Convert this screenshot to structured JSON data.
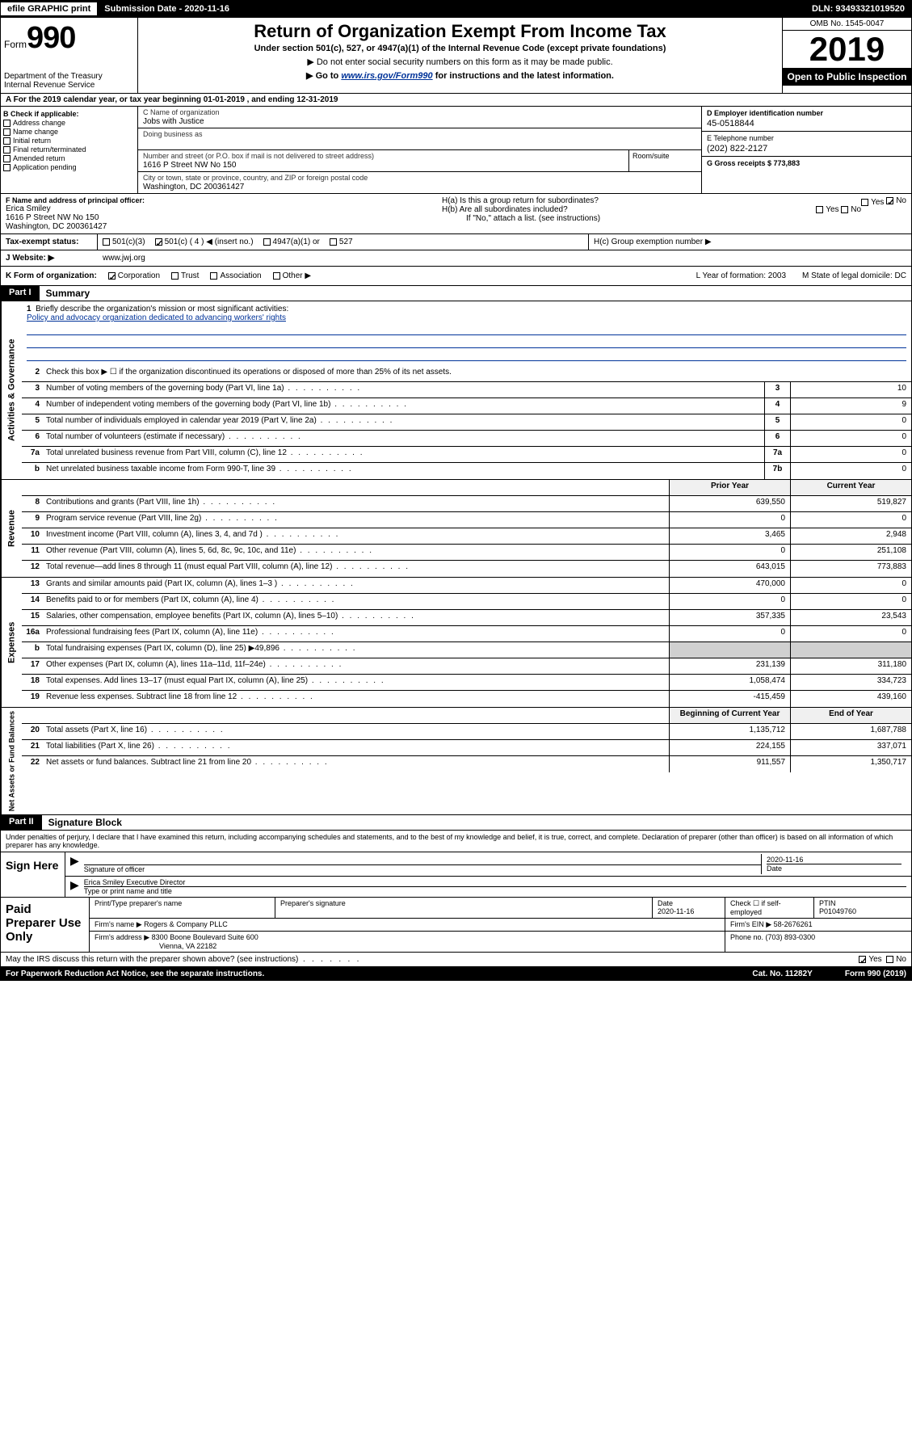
{
  "topbar": {
    "efile": "efile GRAPHIC print",
    "subdate_label": "Submission Date - 2020-11-16",
    "dln": "DLN: 93493321019520"
  },
  "header": {
    "form_label": "Form",
    "form_number": "990",
    "dept": "Department of the Treasury\nInternal Revenue Service",
    "title": "Return of Organization Exempt From Income Tax",
    "sub": "Under section 501(c), 527, or 4947(a)(1) of the Internal Revenue Code (except private foundations)",
    "note1": "▶ Do not enter social security numbers on this form as it may be made public.",
    "note2_pre": "▶ Go to ",
    "note2_link": "www.irs.gov/Form990",
    "note2_post": " for instructions and the latest information.",
    "omb": "OMB No. 1545-0047",
    "year": "2019",
    "open": "Open to Public Inspection"
  },
  "lineA": "A   For the 2019 calendar year, or tax year beginning 01-01-2019    , and ending 12-31-2019",
  "checkboxes": {
    "heading": "B Check if applicable:",
    "items": [
      "Address change",
      "Name change",
      "Initial return",
      "Final return/terminated",
      "Amended return",
      "Application pending"
    ]
  },
  "entity": {
    "name_label": "C Name of organization",
    "name": "Jobs with Justice",
    "dba_label": "Doing business as",
    "addr_label": "Number and street (or P.O. box if mail is not delivered to street address)",
    "room_label": "Room/suite",
    "addr": "1616 P Street NW No 150",
    "city_label": "City or town, state or province, country, and ZIP or foreign postal code",
    "city": "Washington, DC  200361427",
    "ein_label": "D Employer identification number",
    "ein": "45-0518844",
    "tel_label": "E Telephone number",
    "tel": "(202) 822-2127",
    "gross_label": "G Gross receipts $ 773,883"
  },
  "officer": {
    "label": "F  Name and address of principal officer:",
    "name": "Erica Smiley",
    "addr1": "1616 P Street NW No 150",
    "addr2": "Washington, DC  200361427",
    "ha": "H(a)  Is this a group return for subordinates?",
    "hb": "H(b)  Are all subordinates included?",
    "hb_note": "If \"No,\" attach a list. (see instructions)",
    "hc": "H(c)  Group exemption number ▶"
  },
  "tax": {
    "label": "Tax-exempt status:",
    "c3": "501(c)(3)",
    "c4": "501(c) ( 4 ) ◀ (insert no.)",
    "a1": "4947(a)(1) or",
    "s527": "527"
  },
  "website": {
    "label": "J    Website: ▶",
    "val": "www.jwj.org"
  },
  "kform": {
    "label": "K Form of organization:",
    "corp": "Corporation",
    "trust": "Trust",
    "assoc": "Association",
    "other": "Other ▶",
    "year_label": "L Year of formation: 2003",
    "state_label": "M State of legal domicile: DC"
  },
  "part1": {
    "tag": "Part I",
    "title": "Summary"
  },
  "summary": {
    "l1": "Briefly describe the organization's mission or most significant activities:",
    "mission": "Policy and advocacy organization dedicated to advancing workers' rights",
    "l2": "Check this box ▶ ☐  if the organization discontinued its operations or disposed of more than 25% of its net assets.",
    "rows_ag": [
      {
        "n": "3",
        "d": "Number of voting members of the governing body (Part VI, line 1a)",
        "box": "3",
        "v": "10"
      },
      {
        "n": "4",
        "d": "Number of independent voting members of the governing body (Part VI, line 1b)",
        "box": "4",
        "v": "9"
      },
      {
        "n": "5",
        "d": "Total number of individuals employed in calendar year 2019 (Part V, line 2a)",
        "box": "5",
        "v": "0"
      },
      {
        "n": "6",
        "d": "Total number of volunteers (estimate if necessary)",
        "box": "6",
        "v": "0"
      },
      {
        "n": "7a",
        "d": "Total unrelated business revenue from Part VIII, column (C), line 12",
        "box": "7a",
        "v": "0"
      },
      {
        "n": "b",
        "d": "Net unrelated business taxable income from Form 990-T, line 39",
        "box": "7b",
        "v": "0"
      }
    ],
    "prior_label": "Prior Year",
    "curr_label": "Current Year",
    "rows_rev": [
      {
        "n": "8",
        "d": "Contributions and grants (Part VIII, line 1h)",
        "p": "639,550",
        "c": "519,827"
      },
      {
        "n": "9",
        "d": "Program service revenue (Part VIII, line 2g)",
        "p": "0",
        "c": "0"
      },
      {
        "n": "10",
        "d": "Investment income (Part VIII, column (A), lines 3, 4, and 7d )",
        "p": "3,465",
        "c": "2,948"
      },
      {
        "n": "11",
        "d": "Other revenue (Part VIII, column (A), lines 5, 6d, 8c, 9c, 10c, and 11e)",
        "p": "0",
        "c": "251,108"
      },
      {
        "n": "12",
        "d": "Total revenue—add lines 8 through 11 (must equal Part VIII, column (A), line 12)",
        "p": "643,015",
        "c": "773,883"
      }
    ],
    "rows_exp": [
      {
        "n": "13",
        "d": "Grants and similar amounts paid (Part IX, column (A), lines 1–3 )",
        "p": "470,000",
        "c": "0"
      },
      {
        "n": "14",
        "d": "Benefits paid to or for members (Part IX, column (A), line 4)",
        "p": "0",
        "c": "0"
      },
      {
        "n": "15",
        "d": "Salaries, other compensation, employee benefits (Part IX, column (A), lines 5–10)",
        "p": "357,335",
        "c": "23,543"
      },
      {
        "n": "16a",
        "d": "Professional fundraising fees (Part IX, column (A), line 11e)",
        "p": "0",
        "c": "0"
      },
      {
        "n": "b",
        "d": "Total fundraising expenses (Part IX, column (D), line 25) ▶49,896",
        "p": "SHADE",
        "c": "SHADE"
      },
      {
        "n": "17",
        "d": "Other expenses (Part IX, column (A), lines 11a–11d, 11f–24e)",
        "p": "231,139",
        "c": "311,180"
      },
      {
        "n": "18",
        "d": "Total expenses. Add lines 13–17 (must equal Part IX, column (A), line 25)",
        "p": "1,058,474",
        "c": "334,723"
      },
      {
        "n": "19",
        "d": "Revenue less expenses. Subtract line 18 from line 12",
        "p": "-415,459",
        "c": "439,160"
      }
    ],
    "begin_label": "Beginning of Current Year",
    "end_label": "End of Year",
    "rows_na": [
      {
        "n": "20",
        "d": "Total assets (Part X, line 16)",
        "p": "1,135,712",
        "c": "1,687,788"
      },
      {
        "n": "21",
        "d": "Total liabilities (Part X, line 26)",
        "p": "224,155",
        "c": "337,071"
      },
      {
        "n": "22",
        "d": "Net assets or fund balances. Subtract line 21 from line 20",
        "p": "911,557",
        "c": "1,350,717"
      }
    ]
  },
  "sidelabels": {
    "ag": "Activities & Governance",
    "rev": "Revenue",
    "exp": "Expenses",
    "na": "Net Assets or Fund Balances"
  },
  "part2": {
    "tag": "Part II",
    "title": "Signature Block"
  },
  "sig": {
    "penalty": "Under penalties of perjury, I declare that I have examined this return, including accompanying schedules and statements, and to the best of my knowledge and belief, it is true, correct, and complete. Declaration of preparer (other than officer) is based on all information of which preparer has any knowledge.",
    "sign_here": "Sign Here",
    "sig_officer": "Signature of officer",
    "date_val": "2020-11-16",
    "date_label": "Date",
    "name_val": "Erica Smiley  Executive Director",
    "name_label": "Type or print name and title",
    "paid": "Paid Preparer Use Only",
    "prep_name_label": "Print/Type preparer's name",
    "prep_sig_label": "Preparer's signature",
    "prep_date": "2020-11-16",
    "self_emp": "Check ☐ if self-employed",
    "ptin_label": "PTIN",
    "ptin": "P01049760",
    "firm_name_label": "Firm's name     ▶",
    "firm_name": "Rogers & Company PLLC",
    "firm_ein": "Firm's EIN ▶ 58-2676261",
    "firm_addr_label": "Firm's address ▶",
    "firm_addr1": "8300 Boone Boulevard Suite 600",
    "firm_addr2": "Vienna, VA  22182",
    "firm_phone": "Phone no. (703) 893-0300",
    "discuss": "May the IRS discuss this return with the preparer shown above? (see instructions)",
    "yes": "Yes",
    "no": "No"
  },
  "footer": {
    "pra": "For Paperwork Reduction Act Notice, see the separate instructions.",
    "cat": "Cat. No. 11282Y",
    "form": "Form 990 (2019)"
  }
}
